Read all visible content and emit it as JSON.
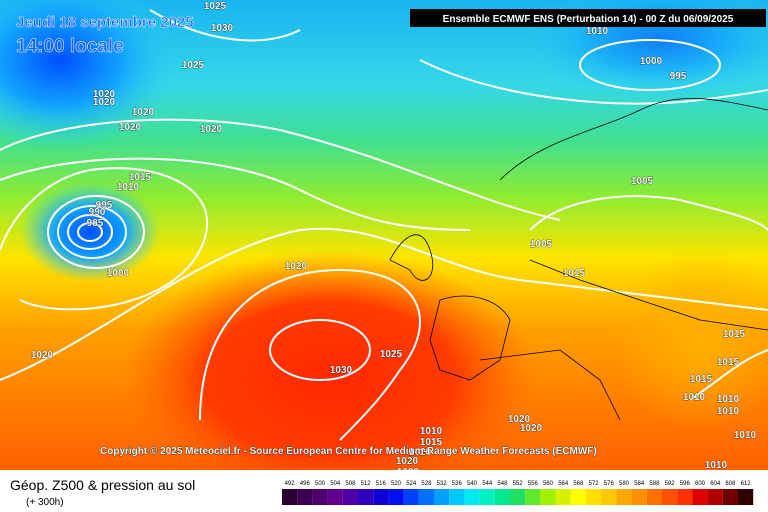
{
  "header": {
    "date": "Jeudi 18 septembre 2025",
    "time": "14:00 locale",
    "model": "Ensemble ECMWF ENS  (Perturbation 14)  -  00 Z du 06/09/2025"
  },
  "copyright": "Copyright © 2025 Meteociel.fr - Source European Centre for Medium-Range Weather Forecasts (ECMWF)",
  "footer": {
    "title": "Géop. Z500 & pression au sol",
    "subtitle": "(+ 300h)"
  },
  "isobar_labels": [
    1025,
    1030,
    1025,
    1020,
    1020,
    1020,
    1020,
    1020,
    1015,
    1010,
    995,
    990,
    985,
    1000,
    1020,
    1020,
    1025,
    1030,
    1010,
    1000,
    995,
    1005,
    1005,
    1015,
    1015,
    1015,
    1015,
    1010,
    1010,
    1010,
    1010,
    1010,
    1010,
    1015,
    1020,
    1020,
    1020,
    1020,
    1020
  ],
  "scale": {
    "values": [
      492,
      496,
      500,
      504,
      508,
      512,
      516,
      520,
      524,
      528,
      532,
      536,
      540,
      544,
      548,
      552,
      556,
      560,
      564,
      568,
      572,
      576,
      580,
      584,
      588,
      592,
      596,
      600,
      604,
      608,
      612
    ],
    "colors": [
      "#2a0030",
      "#3c0050",
      "#50006e",
      "#60008c",
      "#5000a8",
      "#3000c0",
      "#1000d8",
      "#0010f0",
      "#0040ff",
      "#0070ff",
      "#00a0ff",
      "#00c8ff",
      "#00e8f0",
      "#00f0c0",
      "#00e890",
      "#20e060",
      "#60e830",
      "#a0f000",
      "#d8f000",
      "#ffff00",
      "#ffe000",
      "#ffc800",
      "#ffa800",
      "#ff9000",
      "#ff7000",
      "#ff5000",
      "#ff3000",
      "#e00000",
      "#b00000",
      "#700000",
      "#300000"
    ]
  }
}
